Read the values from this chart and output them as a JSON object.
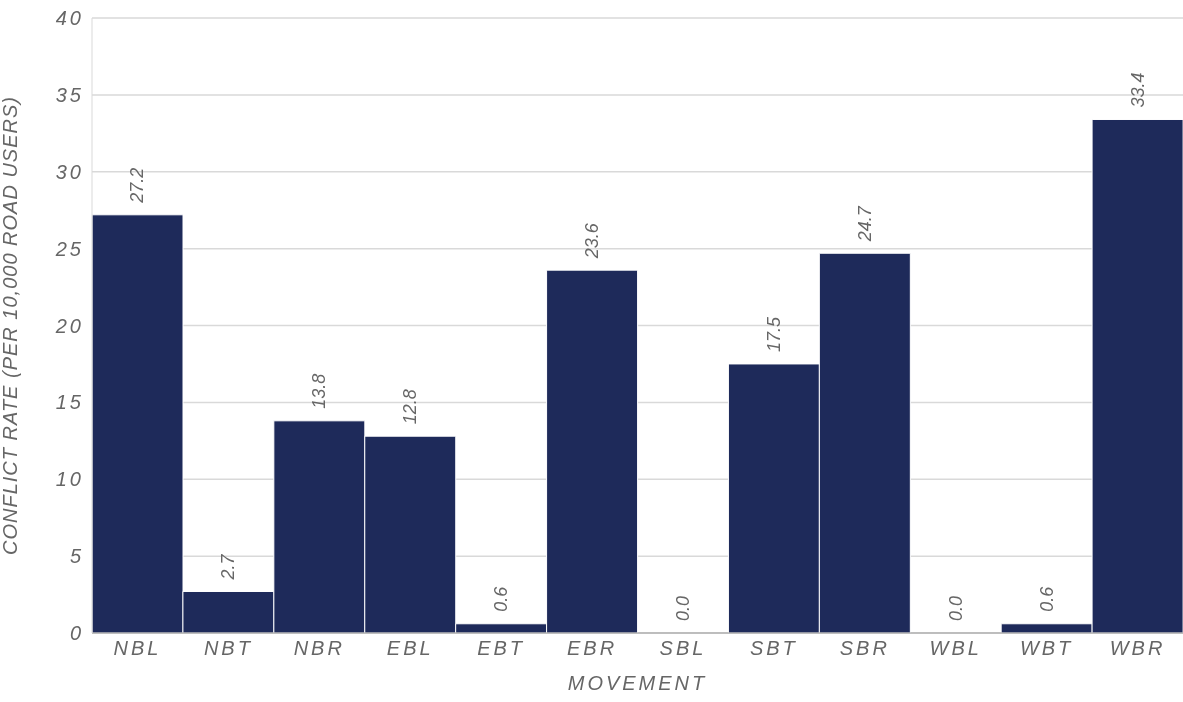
{
  "chart_data": {
    "type": "bar",
    "xlabel": "MOVEMENT",
    "ylabel": "CONFLICT RATE (PER 10,000 ROAD USERS)",
    "categories": [
      "NBL",
      "NBT",
      "NBR",
      "EBL",
      "EBT",
      "EBR",
      "SBL",
      "SBT",
      "SBR",
      "WBL",
      "WBT",
      "WBR"
    ],
    "values": [
      27.2,
      2.7,
      13.8,
      12.8,
      0.6,
      23.6,
      0.0,
      17.5,
      24.7,
      0.0,
      0.6,
      33.4
    ],
    "value_labels": [
      "27.2",
      "2.7",
      "13.8",
      "12.8",
      "0.6",
      "23.6",
      "0.0",
      "17.5",
      "24.7",
      "0.0",
      "0.6",
      "33.4"
    ],
    "color": "#1e2a5a",
    "ylim": [
      0,
      40
    ],
    "yticks": [
      0,
      5,
      10,
      15,
      20,
      25,
      30,
      35,
      40
    ],
    "grid": "y"
  }
}
